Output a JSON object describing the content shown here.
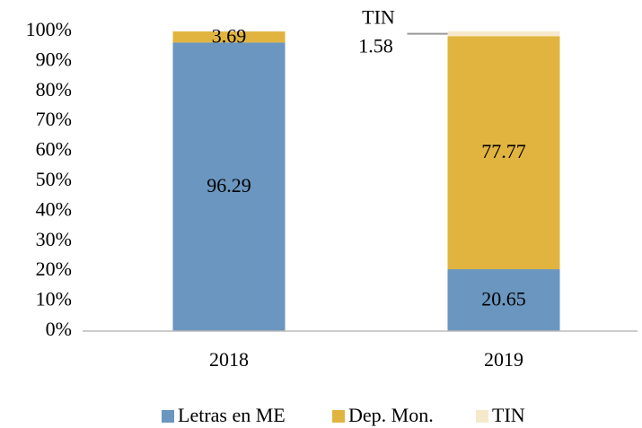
{
  "chart_data": {
    "type": "stacked_bar",
    "categories": [
      "2018",
      "2019"
    ],
    "series": [
      {
        "name": "Letras en ME",
        "color": "#6a96bf",
        "values": [
          96.29,
          20.65
        ]
      },
      {
        "name": "Dep. Mon.",
        "color": "#e0b43e",
        "values": [
          3.69,
          77.77
        ]
      },
      {
        "name": "TIN",
        "color": "#f6e9cb",
        "values": [
          null,
          1.58
        ]
      }
    ],
    "ylim": [
      0,
      100
    ],
    "yticks": [
      {
        "value": 0,
        "label": "0%"
      },
      {
        "value": 10,
        "label": "10%"
      },
      {
        "value": 20,
        "label": "20%"
      },
      {
        "value": 30,
        "label": "30%"
      },
      {
        "value": 40,
        "label": "40%"
      },
      {
        "value": 50,
        "label": "50%"
      },
      {
        "value": 60,
        "label": "60%"
      },
      {
        "value": 70,
        "label": "70%"
      },
      {
        "value": 80,
        "label": "80%"
      },
      {
        "value": 90,
        "label": "90%"
      },
      {
        "value": 100,
        "label": "100%"
      }
    ],
    "legend": "bottom"
  }
}
